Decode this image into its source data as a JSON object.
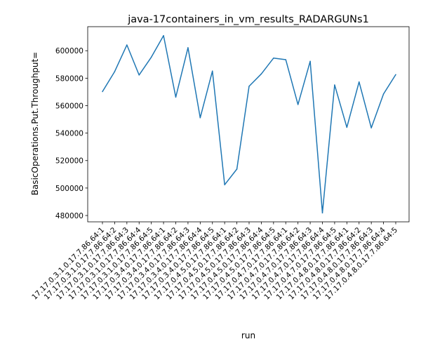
{
  "chart_data": {
    "type": "line",
    "title": "java-17containers_in_vm_results_RADARGUNs1",
    "xlabel": "run",
    "ylabel": "BasicOperations.Put.Throughput=",
    "categories": [
      "17.17.0.3.1.0.17.7.86.64:1",
      "17.17.0.3.1.0.17.7.86.64:2",
      "17.17.0.3.1.0.17.7.86.64:3",
      "17.17.0.3.1.0.17.7.86.64:4",
      "17.17.0.3.1.0.17.7.86.64:5",
      "17.17.0.3.4.0.17.7.86.64:1",
      "17.17.0.3.4.0.17.7.86.64:2",
      "17.17.0.3.4.0.17.7.86.64:3",
      "17.17.0.3.4.0.17.7.86.64:4",
      "17.17.0.3.4.0.17.7.86.64:5",
      "17.17.0.4.5.0.17.7.86.64:1",
      "17.17.0.4.5.0.17.7.86.64:2",
      "17.17.0.4.5.0.17.7.86.64:3",
      "17.17.0.4.5.0.17.7.86.64:4",
      "17.17.0.4.5.0.17.7.86.64:5",
      "17.17.0.4.7.0.17.7.86.64:1",
      "17.17.0.4.7.0.17.7.86.64:2",
      "17.17.0.4.7.0.17.7.86.64:3",
      "17.17.0.4.7.0.17.7.86.64:4",
      "17.17.0.4.7.0.17.7.86.64:5",
      "17.17.0.4.8.0.17.7.86.64:1",
      "17.17.0.4.8.0.17.7.86.64:2",
      "17.17.0.4.8.0.17.7.86.64:3",
      "17.17.0.4.8.0.17.7.86.64:4",
      "17.17.0.4.8.0.17.7.86.64:5"
    ],
    "values": [
      570200,
      584800,
      604200,
      582300,
      595300,
      611000,
      566200,
      602200,
      551200,
      585200,
      502400,
      513800,
      574100,
      583100,
      594600,
      593500,
      560800,
      592300,
      481900,
      575100,
      544200,
      577300,
      543800,
      568500,
      582600
    ],
    "yticks": [
      480000,
      500000,
      520000,
      540000,
      560000,
      580000,
      600000
    ],
    "ylim": [
      475400,
      617500
    ],
    "grid": false,
    "color": "#1f77b4"
  }
}
